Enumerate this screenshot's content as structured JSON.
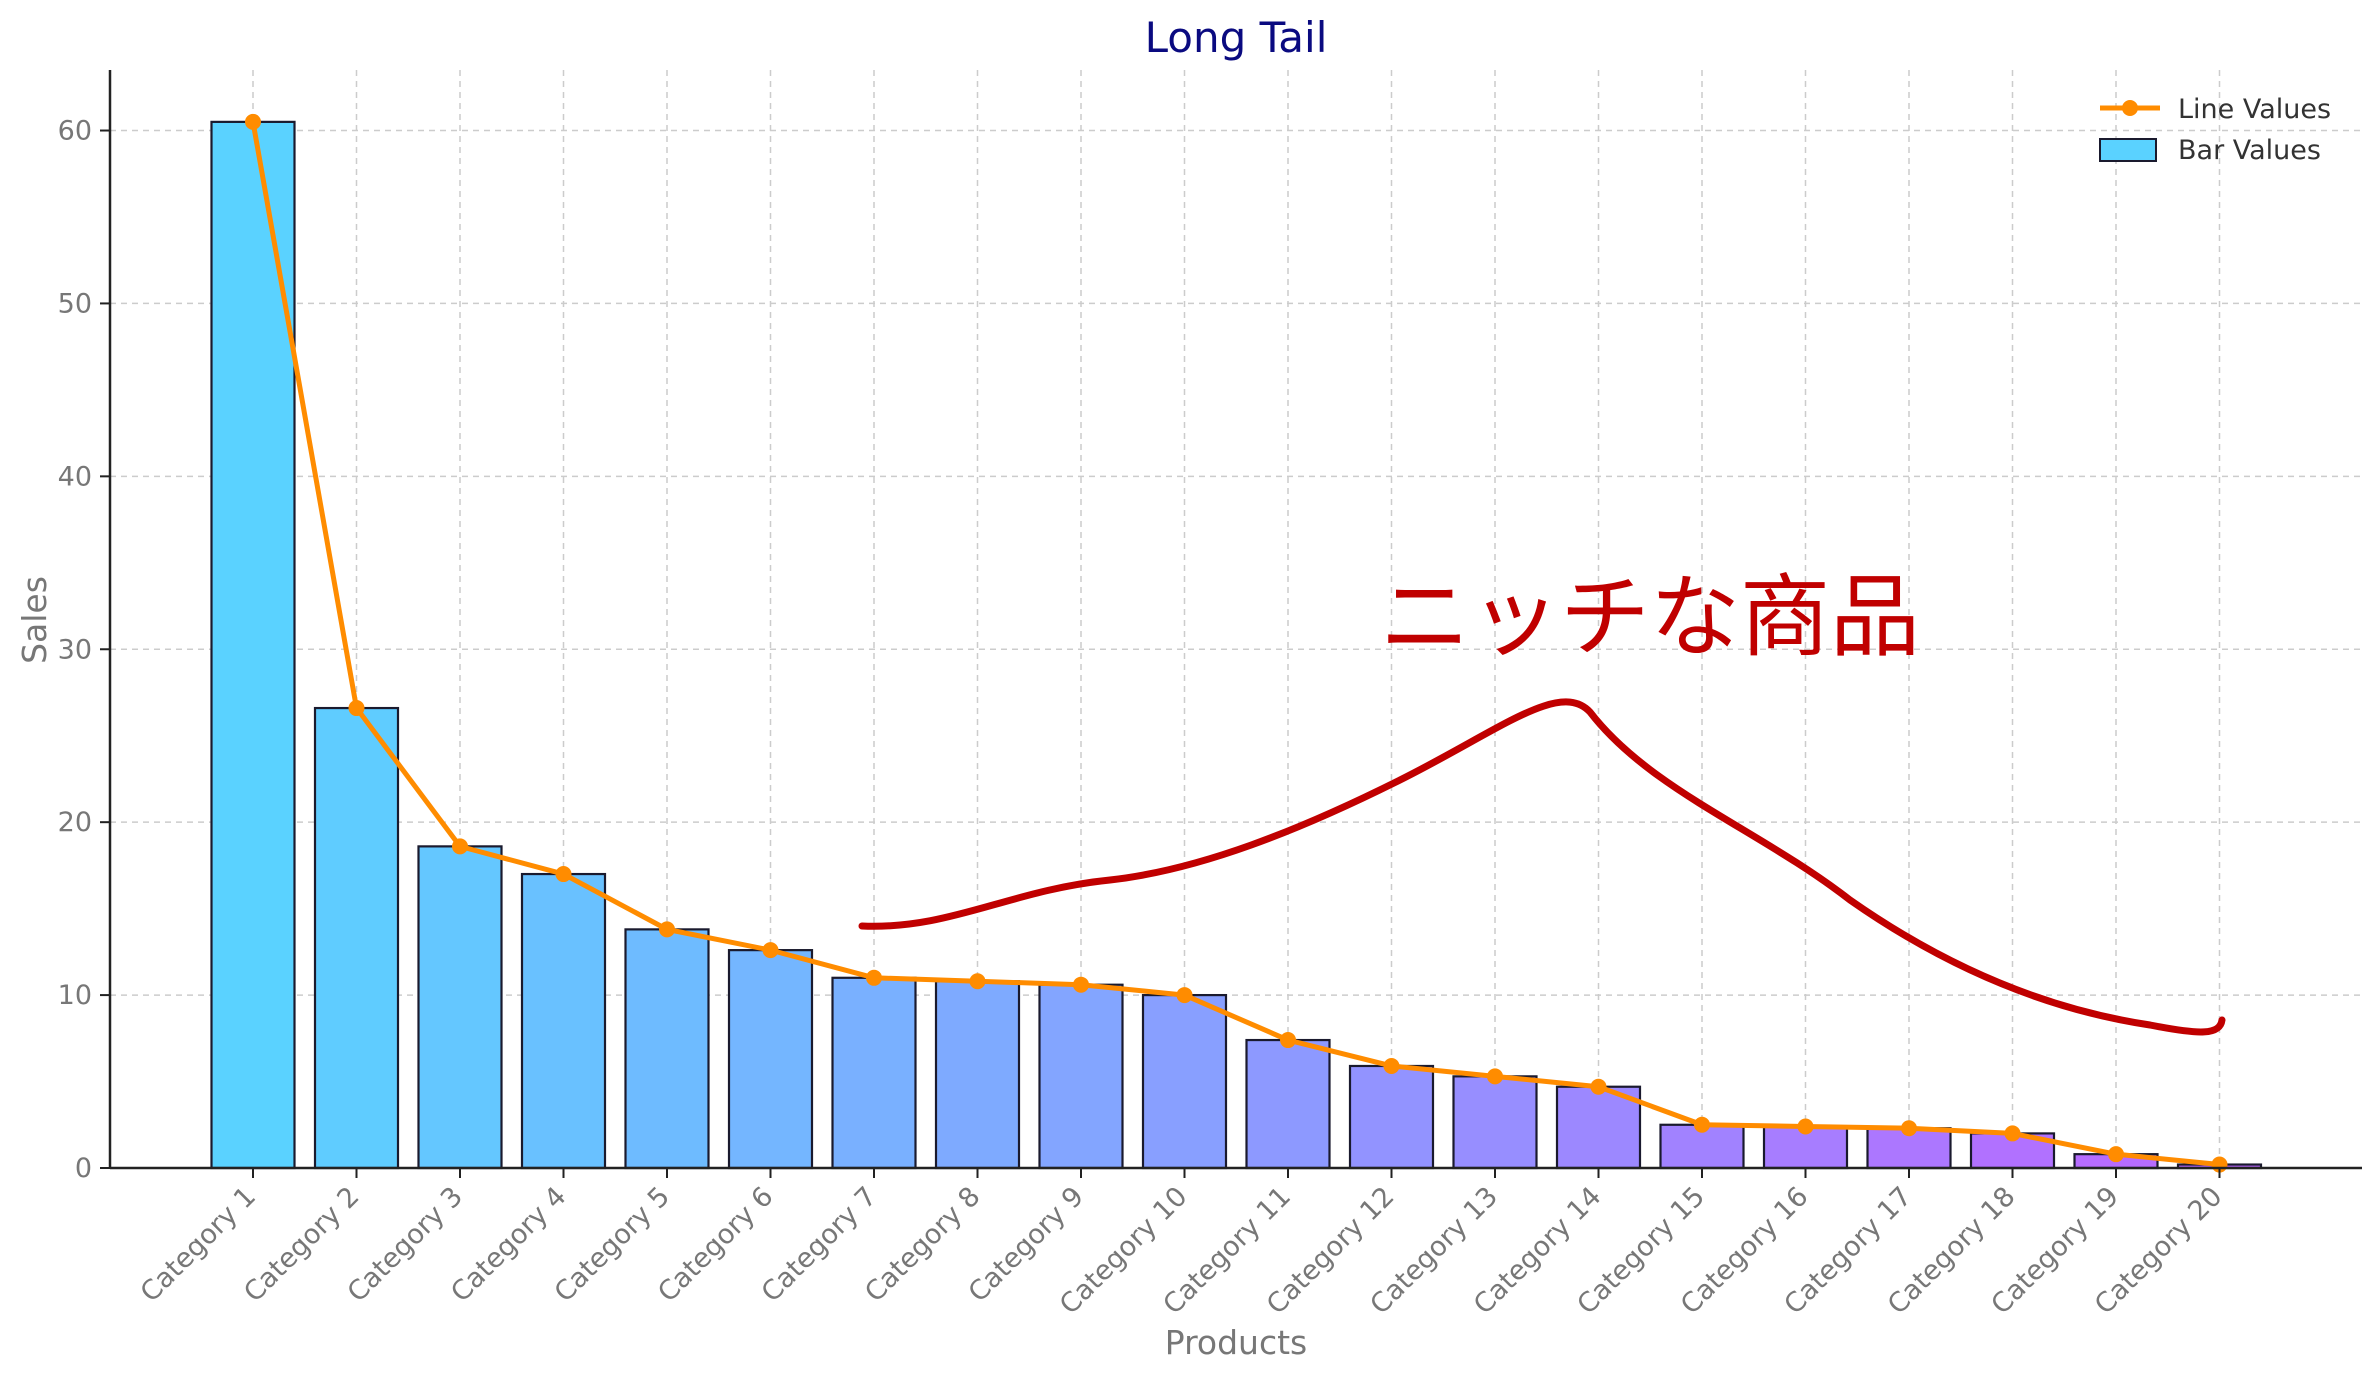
{
  "chart_data": {
    "type": "bar",
    "title": "Long Tail",
    "xlabel": "Products",
    "ylabel": "Sales",
    "ylim": [
      0,
      63.5
    ],
    "yticks": [
      "0",
      "10",
      "20",
      "30",
      "40",
      "50",
      "60"
    ],
    "grid": true,
    "legend_position": "top-right",
    "categories": [
      "Category 1",
      "Category 2",
      "Category 3",
      "Category 4",
      "Category 5",
      "Category 6",
      "Category 7",
      "Category 8",
      "Category 9",
      "Category 10",
      "Category 11",
      "Category 12",
      "Category 13",
      "Category 14",
      "Category 15",
      "Category 16",
      "Category 17",
      "Category 18",
      "Category 19",
      "Category 20"
    ],
    "series": [
      {
        "name": "Bar Values",
        "kind": "bar",
        "values": [
          60.5,
          26.6,
          18.6,
          17.0,
          13.8,
          12.6,
          11.0,
          10.8,
          10.6,
          10.0,
          7.4,
          5.9,
          5.3,
          4.7,
          2.5,
          2.4,
          2.3,
          2.0,
          0.8,
          0.2
        ]
      },
      {
        "name": "Line Values",
        "kind": "line",
        "color": "#ff8c00",
        "values": [
          60.5,
          26.6,
          18.6,
          17.0,
          13.8,
          12.6,
          11.0,
          10.8,
          10.6,
          10.0,
          7.4,
          5.9,
          5.3,
          4.7,
          2.5,
          2.4,
          2.3,
          2.0,
          0.8,
          0.2
        ]
      }
    ],
    "bar_colors": {
      "start": "#5ad2ff",
      "end": "#bb66ff",
      "edge": "#1a1a2e"
    },
    "annotation": {
      "text": "ニッチな商品",
      "color": "#c00000"
    }
  }
}
